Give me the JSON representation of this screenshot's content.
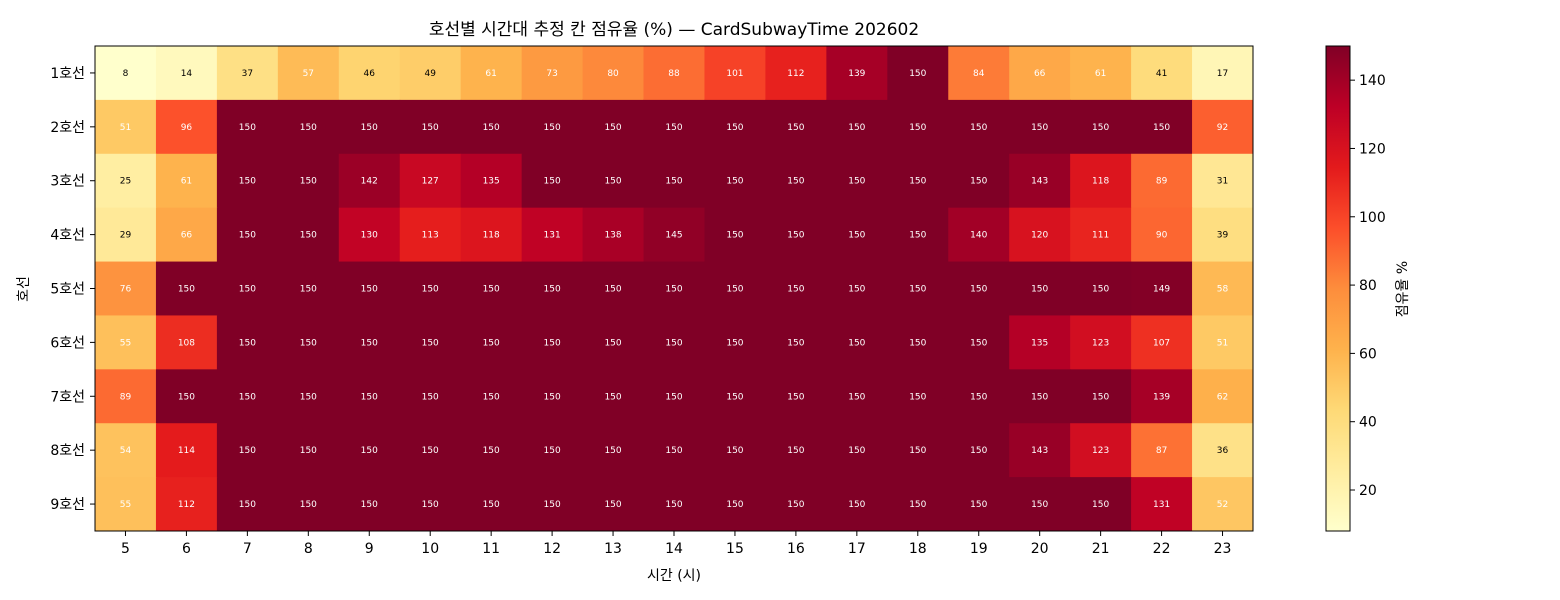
{
  "chart_data": {
    "type": "heatmap",
    "title": "호선별 시간대 추정 칸 점유율 (%) — CardSubwayTime 202602",
    "xlabel": "시간 (시)",
    "ylabel": "호선",
    "x": [
      "5",
      "6",
      "7",
      "8",
      "9",
      "10",
      "11",
      "12",
      "13",
      "14",
      "15",
      "16",
      "17",
      "18",
      "19",
      "20",
      "21",
      "22",
      "23"
    ],
    "y": [
      "1호선",
      "2호선",
      "3호선",
      "4호선",
      "5호선",
      "6호선",
      "7호선",
      "8호선",
      "9호선"
    ],
    "values": [
      [
        8,
        14,
        37,
        57,
        46,
        49,
        61,
        73,
        80,
        88,
        101,
        112,
        139,
        150,
        84,
        66,
        61,
        41,
        17
      ],
      [
        51,
        96,
        150,
        150,
        150,
        150,
        150,
        150,
        150,
        150,
        150,
        150,
        150,
        150,
        150,
        150,
        150,
        150,
        92
      ],
      [
        25,
        61,
        150,
        150,
        142,
        127,
        135,
        150,
        150,
        150,
        150,
        150,
        150,
        150,
        150,
        143,
        118,
        89,
        31
      ],
      [
        29,
        66,
        150,
        150,
        130,
        113,
        118,
        131,
        138,
        145,
        150,
        150,
        150,
        150,
        140,
        120,
        111,
        90,
        39
      ],
      [
        76,
        150,
        150,
        150,
        150,
        150,
        150,
        150,
        150,
        150,
        150,
        150,
        150,
        150,
        150,
        150,
        150,
        149,
        58
      ],
      [
        55,
        108,
        150,
        150,
        150,
        150,
        150,
        150,
        150,
        150,
        150,
        150,
        150,
        150,
        150,
        135,
        123,
        107,
        51
      ],
      [
        89,
        150,
        150,
        150,
        150,
        150,
        150,
        150,
        150,
        150,
        150,
        150,
        150,
        150,
        150,
        150,
        150,
        139,
        62
      ],
      [
        54,
        114,
        150,
        150,
        150,
        150,
        150,
        150,
        150,
        150,
        150,
        150,
        150,
        150,
        150,
        143,
        123,
        87,
        36
      ],
      [
        55,
        112,
        150,
        150,
        150,
        150,
        150,
        150,
        150,
        150,
        150,
        150,
        150,
        150,
        150,
        150,
        150,
        131,
        52
      ]
    ],
    "colorbar": {
      "label": "점유율 %",
      "vmin": 8,
      "vmax": 150,
      "ticks": [
        20,
        40,
        60,
        80,
        100,
        120,
        140
      ],
      "colormap": "YlOrRd",
      "colors": [
        "#ffffcc",
        "#ffeda0",
        "#fed976",
        "#feb24c",
        "#fd8d3c",
        "#fc4e2a",
        "#e31a1c",
        "#bd0026",
        "#800026"
      ]
    }
  }
}
